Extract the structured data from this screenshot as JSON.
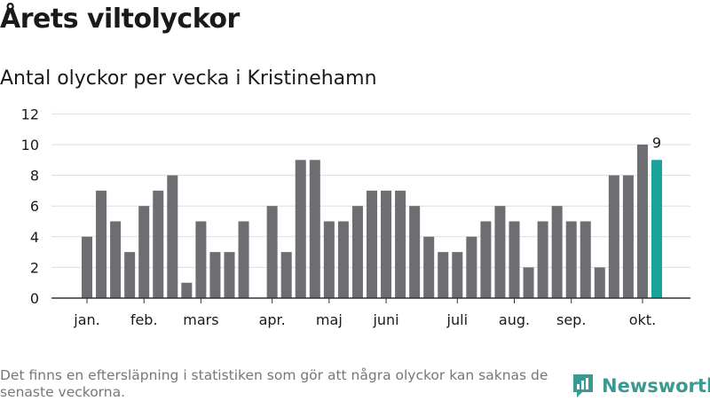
{
  "title": "Årets viltolyckor",
  "subtitle": "Antal olyckor per vecka i Kristinehamn",
  "note": "Det finns en eftersläpning i statistiken som gör att några olyckor kan saknas de senaste veckorna.",
  "brand": {
    "name": "Newsworthy",
    "icon": "newsworthy-logo-icon"
  },
  "colors": {
    "bar": "#6e6d72",
    "highlight": "#1aa39a",
    "grid": "#dddddd",
    "axis": "#333333"
  },
  "chart_data": {
    "type": "bar",
    "title": "Antal olyckor per vecka i Kristinehamn",
    "xlabel": "",
    "ylabel": "",
    "ylim": [
      0,
      12
    ],
    "yticks": [
      0,
      2,
      4,
      6,
      8,
      10,
      12
    ],
    "grid": true,
    "weeks": [
      1,
      2,
      3,
      4,
      5,
      6,
      7,
      8,
      9,
      10,
      11,
      12,
      13,
      14,
      15,
      16,
      17,
      18,
      19,
      20,
      21,
      22,
      23,
      24,
      25,
      26,
      27,
      28,
      29,
      30,
      31,
      32,
      33,
      34,
      35,
      36,
      37,
      38,
      39,
      40,
      41
    ],
    "values": [
      4,
      7,
      5,
      3,
      6,
      7,
      8,
      1,
      5,
      3,
      3,
      5,
      0,
      6,
      3,
      9,
      9,
      5,
      5,
      6,
      7,
      7,
      7,
      6,
      4,
      3,
      3,
      4,
      5,
      6,
      5,
      2,
      5,
      6,
      5,
      5,
      2,
      8,
      8,
      10,
      9
    ],
    "highlight_index": 40,
    "data_labels": [
      {
        "index": 40,
        "text": "9"
      }
    ],
    "month_labels": [
      {
        "label": "jan.",
        "index": 0
      },
      {
        "label": "feb.",
        "index": 4
      },
      {
        "label": "mars",
        "index": 8
      },
      {
        "label": "apr.",
        "index": 13
      },
      {
        "label": "maj",
        "index": 17
      },
      {
        "label": "juni",
        "index": 21
      },
      {
        "label": "juli",
        "index": 26
      },
      {
        "label": "aug.",
        "index": 30
      },
      {
        "label": "sep.",
        "index": 34
      },
      {
        "label": "okt.",
        "index": 39
      }
    ]
  }
}
